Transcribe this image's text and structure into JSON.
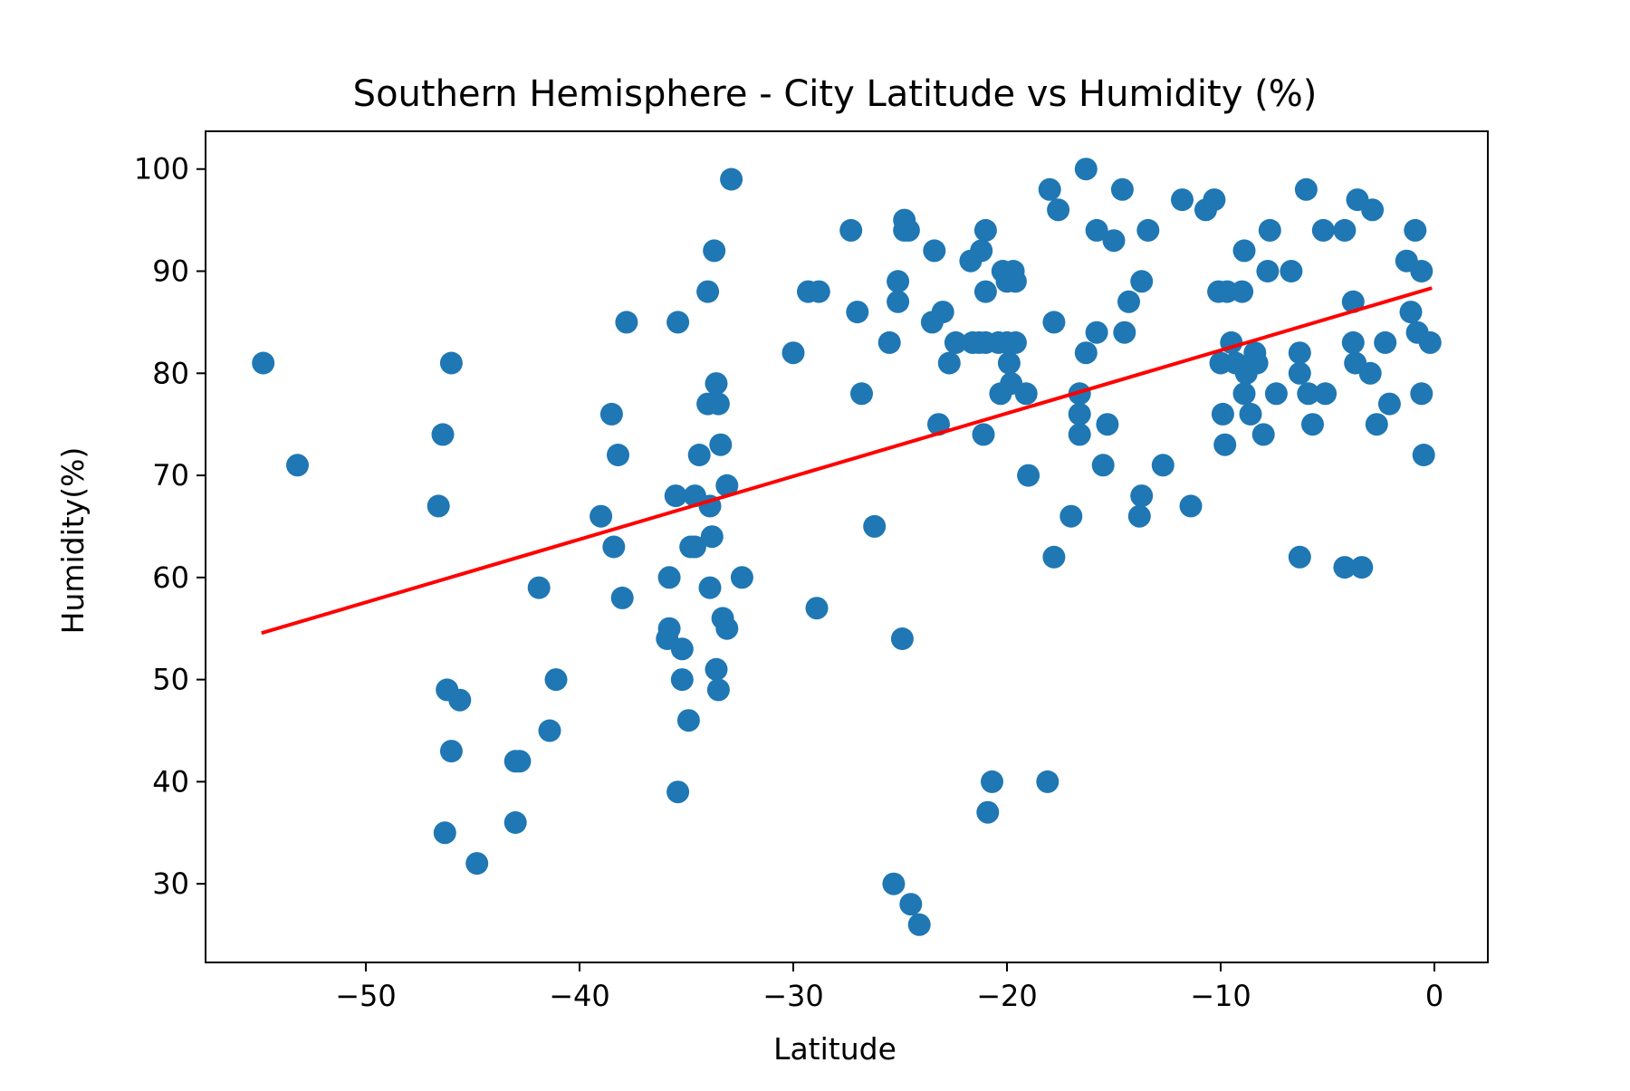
{
  "chart_data": {
    "type": "scatter",
    "title": "Southern Hemisphere - City Latitude vs Humidity (%)",
    "xlabel": "Latitude",
    "ylabel": "Humidity(%)",
    "xlim": [
      -57.5,
      2.5
    ],
    "ylim": [
      22.3,
      103.7
    ],
    "xticks": [
      -50,
      -40,
      -30,
      -20,
      -10,
      0
    ],
    "xtick_labels": [
      "−50",
      "−40",
      "−30",
      "−20",
      "−10",
      "0"
    ],
    "yticks": [
      30,
      40,
      50,
      60,
      70,
      80,
      90,
      100
    ],
    "ytick_labels": [
      "30",
      "40",
      "50",
      "60",
      "70",
      "80",
      "90",
      "100"
    ],
    "grid": false,
    "colors": {
      "points": "#1f77b4",
      "regression": "#ff0000",
      "axes": "#000000"
    },
    "series": [
      {
        "values": [
          [
            -54.8,
            81
          ],
          [
            -53.2,
            71
          ],
          [
            -46.6,
            67
          ],
          [
            -46.4,
            74
          ],
          [
            -46.3,
            35
          ],
          [
            -46.2,
            49
          ],
          [
            -46.0,
            81
          ],
          [
            -46.0,
            43
          ],
          [
            -45.6,
            48
          ],
          [
            -44.8,
            32
          ],
          [
            -43.0,
            42
          ],
          [
            -42.8,
            42
          ],
          [
            -43.0,
            36
          ],
          [
            -41.9,
            59
          ],
          [
            -41.4,
            45
          ],
          [
            -41.1,
            50
          ],
          [
            -39.0,
            66
          ],
          [
            -38.5,
            76
          ],
          [
            -38.4,
            63
          ],
          [
            -38.2,
            72
          ],
          [
            -38.0,
            58
          ],
          [
            -37.8,
            85
          ],
          [
            -35.8,
            60
          ],
          [
            -35.8,
            55
          ],
          [
            -35.9,
            54
          ],
          [
            -35.5,
            68
          ],
          [
            -35.4,
            85
          ],
          [
            -35.4,
            39
          ],
          [
            -35.2,
            53
          ],
          [
            -35.2,
            50
          ],
          [
            -34.9,
            46
          ],
          [
            -34.8,
            63
          ],
          [
            -34.6,
            63
          ],
          [
            -34.6,
            68
          ],
          [
            -34.4,
            72
          ],
          [
            -34.0,
            77
          ],
          [
            -34.0,
            88
          ],
          [
            -33.9,
            59
          ],
          [
            -33.9,
            67
          ],
          [
            -33.8,
            64
          ],
          [
            -33.7,
            92
          ],
          [
            -33.6,
            79
          ],
          [
            -33.6,
            51
          ],
          [
            -33.5,
            49
          ],
          [
            -33.5,
            77
          ],
          [
            -33.4,
            73
          ],
          [
            -33.3,
            56
          ],
          [
            -33.1,
            55
          ],
          [
            -33.1,
            69
          ],
          [
            -32.9,
            99
          ],
          [
            -32.4,
            60
          ],
          [
            -30.0,
            82
          ],
          [
            -29.3,
            88
          ],
          [
            -28.8,
            88
          ],
          [
            -28.9,
            57
          ],
          [
            -27.3,
            94
          ],
          [
            -27.0,
            86
          ],
          [
            -26.8,
            78
          ],
          [
            -26.2,
            65
          ],
          [
            -25.5,
            83
          ],
          [
            -25.3,
            30
          ],
          [
            -25.1,
            89
          ],
          [
            -25.1,
            87
          ],
          [
            -24.9,
            54
          ],
          [
            -24.8,
            94
          ],
          [
            -24.8,
            95
          ],
          [
            -24.6,
            94
          ],
          [
            -24.5,
            28
          ],
          [
            -24.1,
            26
          ],
          [
            -23.5,
            85
          ],
          [
            -23.4,
            92
          ],
          [
            -23.2,
            75
          ],
          [
            -23.0,
            86
          ],
          [
            -22.7,
            81
          ],
          [
            -22.4,
            83
          ],
          [
            -21.7,
            91
          ],
          [
            -21.6,
            83
          ],
          [
            -21.3,
            83
          ],
          [
            -21.2,
            92
          ],
          [
            -21.1,
            74
          ],
          [
            -21.0,
            88
          ],
          [
            -21.0,
            94
          ],
          [
            -21.0,
            83
          ],
          [
            -20.9,
            37
          ],
          [
            -20.7,
            40
          ],
          [
            -20.4,
            83
          ],
          [
            -20.3,
            78
          ],
          [
            -20.2,
            90
          ],
          [
            -20.0,
            83
          ],
          [
            -20.0,
            89
          ],
          [
            -19.9,
            81
          ],
          [
            -19.8,
            79
          ],
          [
            -19.7,
            90
          ],
          [
            -19.6,
            89
          ],
          [
            -19.6,
            83
          ],
          [
            -19.1,
            78
          ],
          [
            -19.0,
            70
          ],
          [
            -18.1,
            40
          ],
          [
            -18.0,
            98
          ],
          [
            -17.8,
            85
          ],
          [
            -17.8,
            62
          ],
          [
            -17.6,
            96
          ],
          [
            -17.0,
            66
          ],
          [
            -16.6,
            78
          ],
          [
            -16.6,
            76
          ],
          [
            -16.6,
            74
          ],
          [
            -16.3,
            82
          ],
          [
            -16.3,
            100
          ],
          [
            -15.8,
            84
          ],
          [
            -15.8,
            94
          ],
          [
            -15.5,
            71
          ],
          [
            -15.3,
            75
          ],
          [
            -15.0,
            93
          ],
          [
            -14.6,
            98
          ],
          [
            -14.5,
            84
          ],
          [
            -14.3,
            87
          ],
          [
            -13.8,
            66
          ],
          [
            -13.7,
            68
          ],
          [
            -13.7,
            89
          ],
          [
            -13.4,
            94
          ],
          [
            -12.7,
            71
          ],
          [
            -11.8,
            97
          ],
          [
            -11.4,
            67
          ],
          [
            -10.7,
            96
          ],
          [
            -10.3,
            97
          ],
          [
            -10.1,
            88
          ],
          [
            -10.0,
            81
          ],
          [
            -9.9,
            76
          ],
          [
            -9.8,
            73
          ],
          [
            -9.7,
            88
          ],
          [
            -9.5,
            83
          ],
          [
            -9.3,
            81
          ],
          [
            -9.0,
            88
          ],
          [
            -8.9,
            92
          ],
          [
            -8.9,
            78
          ],
          [
            -8.8,
            80
          ],
          [
            -8.6,
            76
          ],
          [
            -8.4,
            82
          ],
          [
            -8.3,
            81
          ],
          [
            -8.0,
            74
          ],
          [
            -7.8,
            90
          ],
          [
            -7.7,
            94
          ],
          [
            -7.4,
            78
          ],
          [
            -6.7,
            90
          ],
          [
            -6.3,
            82
          ],
          [
            -6.3,
            80
          ],
          [
            -6.3,
            62
          ],
          [
            -6.0,
            98
          ],
          [
            -5.9,
            78
          ],
          [
            -5.7,
            75
          ],
          [
            -5.2,
            94
          ],
          [
            -5.1,
            78
          ],
          [
            -4.2,
            94
          ],
          [
            -4.2,
            61
          ],
          [
            -3.8,
            87
          ],
          [
            -3.8,
            83
          ],
          [
            -3.7,
            81
          ],
          [
            -3.6,
            97
          ],
          [
            -3.4,
            61
          ],
          [
            -3.0,
            80
          ],
          [
            -2.9,
            96
          ],
          [
            -2.7,
            75
          ],
          [
            -2.3,
            83
          ],
          [
            -2.1,
            77
          ],
          [
            -1.3,
            91
          ],
          [
            -1.1,
            86
          ],
          [
            -0.9,
            94
          ],
          [
            -0.8,
            84
          ],
          [
            -0.6,
            90
          ],
          [
            -0.6,
            78
          ],
          [
            -0.5,
            72
          ],
          [
            -0.2,
            83
          ]
        ]
      }
    ],
    "regression": {
      "x": [
        -54.8,
        -0.2
      ],
      "y": [
        54.6,
        88.3
      ]
    }
  }
}
